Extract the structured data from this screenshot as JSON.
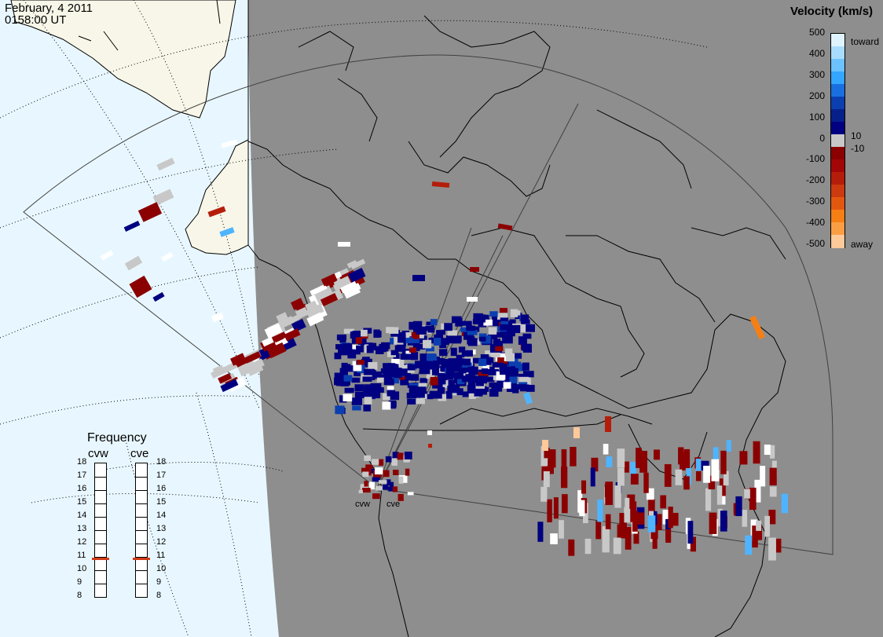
{
  "timestamp": {
    "date": "February, 4 2011",
    "time": "0158:00 UT"
  },
  "colorbar": {
    "title": "Velocity (km/s)",
    "ticks": [
      "500",
      "400",
      "300",
      "200",
      "100",
      "0",
      "-100",
      "-200",
      "-300",
      "-400",
      "-500"
    ],
    "small_pos": "10",
    "small_neg": "-10",
    "toward_label": "toward",
    "away_label": "away",
    "colors": [
      "#dff3ff",
      "#a8dcff",
      "#6cc2ff",
      "#33a6ff",
      "#1a6fe0",
      "#0b3fb0",
      "#06208a",
      "#000080",
      "#c8c8c8",
      "#8b0000",
      "#a30606",
      "#b51d0b",
      "#cc3a10",
      "#e3580f",
      "#f57f14",
      "#fb9e43",
      "#ffc99a"
    ]
  },
  "frequency": {
    "title": "Frequency",
    "radars": [
      {
        "code": "cvw",
        "current_mhz": 10.8
      },
      {
        "code": "cve",
        "current_mhz": 10.8
      }
    ],
    "levels": [
      "18",
      "17",
      "16",
      "15",
      "14",
      "13",
      "12",
      "11",
      "10",
      "9",
      "8"
    ],
    "mark_color": "#d03a14"
  },
  "sites": [
    {
      "code": "cvw"
    },
    {
      "code": "cve"
    }
  ],
  "map_colors": {
    "ocean_day": "#e8f7ff",
    "land_day": "#f7f6e8",
    "night": "#8e8e8e",
    "coastline": "#000000",
    "graticule": "#000000",
    "fov_outline": "#404040",
    "ground_scatter": "#c8c8c8"
  },
  "velocity_cells_summary": {
    "ground_scatter_color": "#c8c8c8",
    "toward_dark": "#000080",
    "away_dark": "#8b0000"
  }
}
